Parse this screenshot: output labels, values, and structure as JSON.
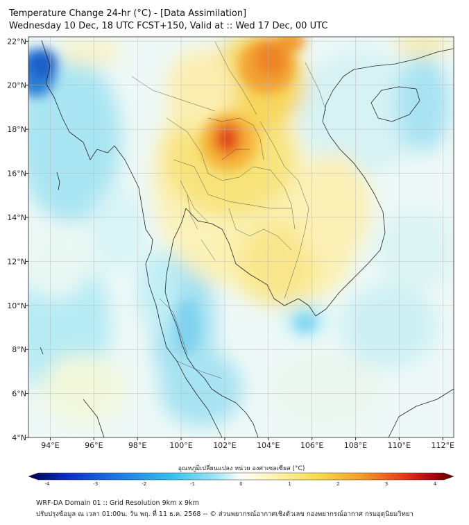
{
  "title": {
    "line1": "Temperature Change 24-hr (°C) - [Data Assimilation]",
    "line2": "Wednesday 10 Dec, 18 UTC FCST+150, Valid at :: Wed 17 Dec, 00 UTC"
  },
  "map": {
    "lon_labels": [
      "94°E",
      "96°E",
      "98°E",
      "100°E",
      "102°E",
      "104°E",
      "106°E",
      "108°E",
      "110°E",
      "112°E"
    ],
    "lat_labels": [
      "22°N",
      "20°N",
      "18°N",
      "16°N",
      "14°N",
      "12°N",
      "10°N",
      "8°N",
      "6°N",
      "4°N"
    ],
    "lon_values": [
      94,
      96,
      98,
      100,
      102,
      104,
      106,
      108,
      110,
      112
    ],
    "lat_values": [
      22,
      20,
      18,
      16,
      14,
      12,
      10,
      8,
      6,
      4
    ],
    "extent": {
      "lon_min": 93,
      "lon_max": 112.5,
      "lat_min": 4,
      "lat_max": 22.2
    },
    "colors": {
      "cold_strong": "#1a5fc8",
      "cold": "#7fd6f0",
      "cool": "#c9f0f6",
      "neutral": "#fbfbe6",
      "warm": "#f8e98a",
      "warm_strong": "#f4c53a",
      "hot": "#f08a2a",
      "very_hot": "#e0301c"
    }
  },
  "colorbar": {
    "title": "อุณหภูมิเปลี่ยนแปลง หน่วย องศาเซลเซียส (°C)",
    "ticks": [
      "-4",
      "-3",
      "-2",
      "-1",
      "0",
      "1",
      "2",
      "3",
      "4"
    ],
    "tick_values": [
      -4,
      -3,
      -2,
      -1,
      0,
      1,
      2,
      3,
      4
    ],
    "range": [
      -4,
      4
    ],
    "stops": [
      "#00004c",
      "#0a2cc8",
      "#1e7fe8",
      "#33c4f0",
      "#9ee6f6",
      "#ffffff",
      "#fff4b0",
      "#f8dc4a",
      "#f4a028",
      "#e83c18",
      "#b00010",
      "#4c0000"
    ]
  },
  "footer": {
    "line1": "WRF-DA Domain 01 :: Grid Resolution 9km x 9km",
    "line2": "ปรับปรุงข้อมูล ณ เวลา 01:00น. วัน พฤ. ที่ 11 ธ.ค. 2568 -- © ส่วนพยากรณ์อากาศเชิงตัวเลข กองพยากรณ์อากาศ กรมอุตุนิยมวิทยา"
  }
}
